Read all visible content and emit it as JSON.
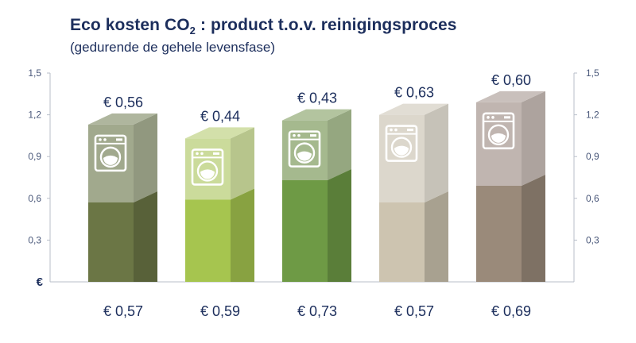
{
  "title_main": "Eco kosten CO",
  "title_sub": "2",
  "title_rest": " : product t.o.v. reinigingsproces",
  "subtitle": "(gedurende de gehele levensfase)",
  "chart_data": {
    "type": "bar",
    "title": "Eco kosten CO2 : product t.o.v. reinigingsproces",
    "subtitle": "(gedurende de gehele levensfase)",
    "ylabel": "€",
    "ylim": [
      0,
      1.5
    ],
    "yticks": [
      "0,3",
      "0,6",
      "0,9",
      "1,2",
      "1,5"
    ],
    "ytick_values": [
      0.3,
      0.6,
      0.9,
      1.2,
      1.5
    ],
    "stacked": true,
    "grid": false,
    "series": [
      {
        "values": [
          0.57,
          0.59,
          0.73,
          0.57,
          0.69
        ],
        "labels": [
          "€ 0,57",
          "€ 0,59",
          "€ 0,73",
          "€ 0,57",
          "€ 0,69"
        ]
      },
      {
        "values": [
          0.56,
          0.44,
          0.43,
          0.63,
          0.6
        ],
        "labels": [
          "€ 0,56",
          "€ 0,44",
          "€ 0,43",
          "€ 0,63",
          "€ 0,60"
        ]
      }
    ],
    "bar_colors": [
      {
        "bottom": "#6b7645",
        "top": "#a1a98d"
      },
      {
        "bottom": "#a6c54f",
        "top": "#cbdb9b"
      },
      {
        "bottom": "#6e9a45",
        "top": "#a5b98e"
      },
      {
        "bottom": "#cdc4b0",
        "top": "#dcd7cc"
      },
      {
        "bottom": "#9a8a7a",
        "top": "#c0b5b0"
      }
    ],
    "icon": "washing-machine-icon"
  }
}
